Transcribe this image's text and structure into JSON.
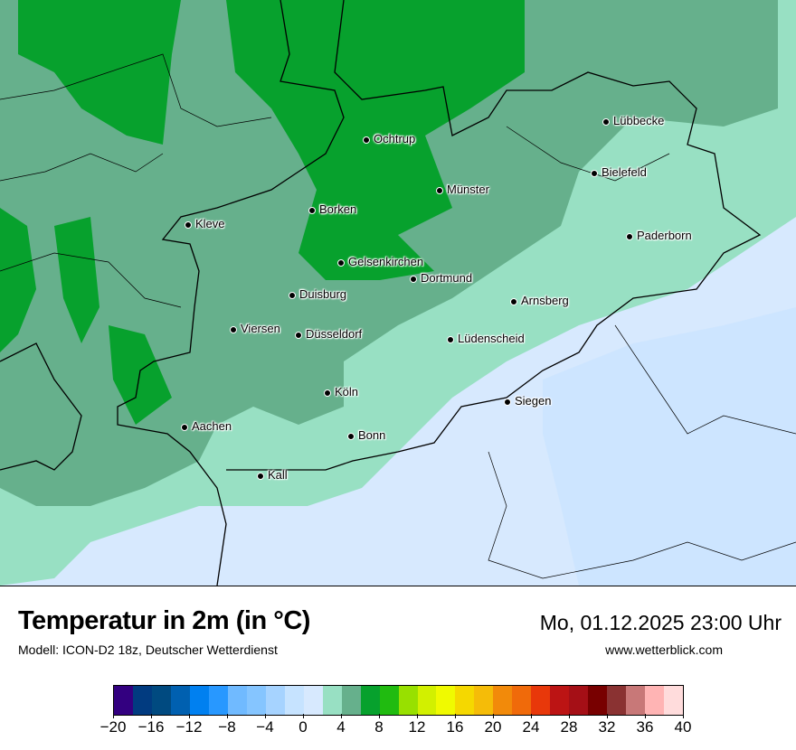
{
  "map": {
    "cities": [
      {
        "name": "Lübbecke"
      },
      {
        "name": "Ochtrup"
      },
      {
        "name": "Bielefeld"
      },
      {
        "name": "Münster"
      },
      {
        "name": "Borken"
      },
      {
        "name": "Kleve"
      },
      {
        "name": "Paderborn"
      },
      {
        "name": "Gelsenkirchen"
      },
      {
        "name": "Dortmund"
      },
      {
        "name": "Duisburg"
      },
      {
        "name": "Arnsberg"
      },
      {
        "name": "Viersen"
      },
      {
        "name": "Düsseldorf"
      },
      {
        "name": "Lüdenscheid"
      },
      {
        "name": "Köln"
      },
      {
        "name": "Siegen"
      },
      {
        "name": "Aachen"
      },
      {
        "name": "Bonn"
      },
      {
        "name": "Kall"
      }
    ]
  },
  "header": {
    "title": "Temperatur in 2m (in °C)",
    "subtitle": "Modell: ICON-D2 18z, Deutscher Wetterdienst",
    "datetime": "Mo, 01.12.2025 23:00 Uhr",
    "site": "www.wetterblick.com"
  },
  "legend": {
    "min": -20,
    "max": 40,
    "step": 2,
    "tick_labels": [
      "−20",
      "−16",
      "−12",
      "−8",
      "−4",
      "0",
      "4",
      "8",
      "12",
      "16",
      "20",
      "24",
      "28",
      "32",
      "36",
      "40"
    ],
    "colors": [
      "#330080",
      "#013b80",
      "#004a80",
      "#0060b0",
      "#0080f0",
      "#2898ff",
      "#70baff",
      "#85c5ff",
      "#a6d3ff",
      "#c6e3ff",
      "#d7e9fe",
      "#98e0c3",
      "#66b08c",
      "#07a12d",
      "#20bb10",
      "#98e000",
      "#d2f000",
      "#f0fa00",
      "#f5d800",
      "#f5bc08",
      "#f28a0a",
      "#f06a0a",
      "#e8380a",
      "#bc1414",
      "#a50f16",
      "#780000",
      "#8a3232",
      "#c87878",
      "#ffb4b4",
      "#ffdcdc"
    ]
  }
}
